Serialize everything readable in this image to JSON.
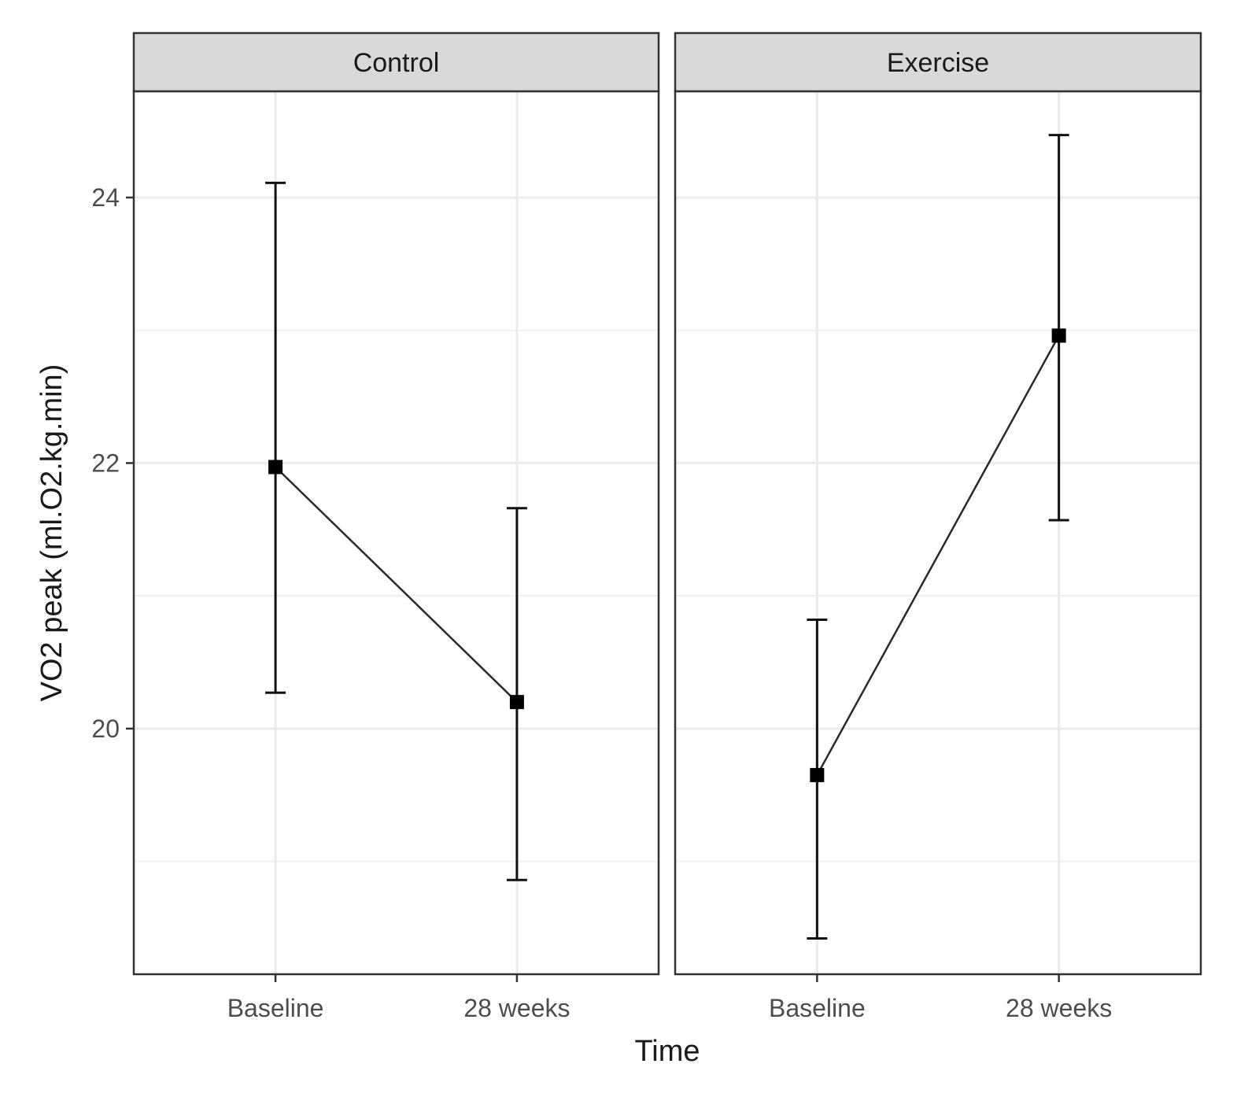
{
  "chart_data": {
    "type": "line",
    "ylabel": "VO2 peak (ml.O2.kg.min)",
    "xlabel": "Time",
    "categories": [
      "Baseline",
      "28 weeks"
    ],
    "ylim": [
      18.15,
      24.8
    ],
    "y_ticks": [
      20,
      22,
      24
    ],
    "grid": true,
    "error_bars": true,
    "facets": [
      {
        "name": "Control",
        "points": [
          {
            "x": "Baseline",
            "y": 21.97,
            "lower": 20.27,
            "upper": 24.11
          },
          {
            "x": "28 weeks",
            "y": 20.2,
            "lower": 18.86,
            "upper": 21.66
          }
        ]
      },
      {
        "name": "Exercise",
        "points": [
          {
            "x": "Baseline",
            "y": 19.65,
            "lower": 18.42,
            "upper": 20.82
          },
          {
            "x": "28 weeks",
            "y": 22.96,
            "lower": 21.57,
            "upper": 24.47
          }
        ]
      }
    ]
  }
}
